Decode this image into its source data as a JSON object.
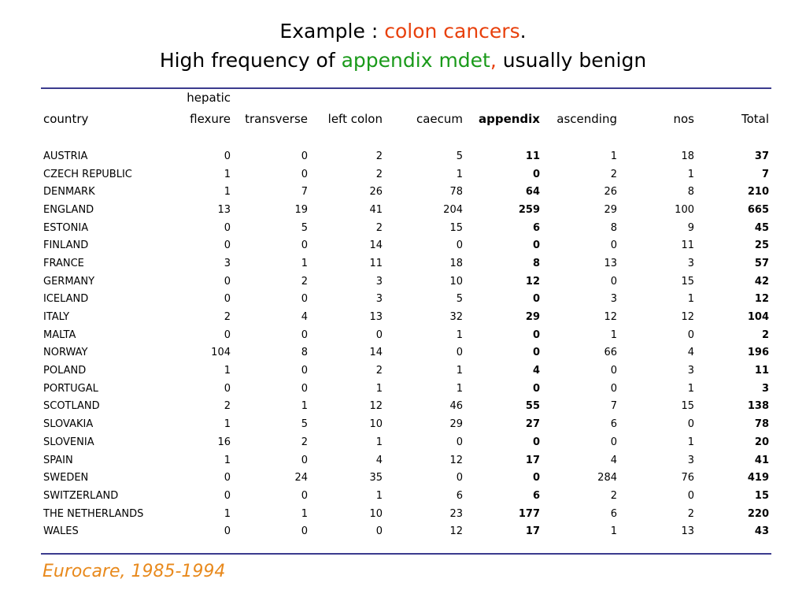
{
  "title": {
    "line1_prefix": "Example : ",
    "line1_highlight": "colon cancers",
    "line1_suffix": ".",
    "line2_prefix": "High frequency of ",
    "line2_highlight": "appendix mdet",
    "line2_comma": ",",
    "line2_suffix": " usually benign"
  },
  "colors": {
    "orange_red": "#e8400c",
    "green": "#1a9a1a",
    "rule": "#3b3b8e",
    "source": "#e8891c"
  },
  "table": {
    "headers": {
      "country": "country",
      "hepatic_flexure_line1": "hepatic",
      "hepatic_flexure_line2": "flexure",
      "transverse": "transverse",
      "left_colon": "left colon",
      "caecum": "caecum",
      "appendix": "appendix",
      "ascending": "ascending",
      "nos": "nos",
      "total": "Total"
    },
    "rows": [
      {
        "country": "AUSTRIA",
        "hepatic_flexure": "0",
        "transverse": "0",
        "left_colon": "2",
        "caecum": "5",
        "appendix": "11",
        "ascending": "1",
        "nos": "18",
        "total": "37"
      },
      {
        "country": "CZECH REPUBLIC",
        "hepatic_flexure": "1",
        "transverse": "0",
        "left_colon": "2",
        "caecum": "1",
        "appendix": "0",
        "ascending": "2",
        "nos": "1",
        "total": "7"
      },
      {
        "country": "DENMARK",
        "hepatic_flexure": "1",
        "transverse": "7",
        "left_colon": "26",
        "caecum": "78",
        "appendix": "64",
        "ascending": "26",
        "nos": "8",
        "total": "210"
      },
      {
        "country": "ENGLAND",
        "hepatic_flexure": "13",
        "transverse": "19",
        "left_colon": "41",
        "caecum": "204",
        "appendix": "259",
        "ascending": "29",
        "nos": "100",
        "total": "665"
      },
      {
        "country": "ESTONIA",
        "hepatic_flexure": "0",
        "transverse": "5",
        "left_colon": "2",
        "caecum": "15",
        "appendix": "6",
        "ascending": "8",
        "nos": "9",
        "total": "45"
      },
      {
        "country": "FINLAND",
        "hepatic_flexure": "0",
        "transverse": "0",
        "left_colon": "14",
        "caecum": "0",
        "appendix": "0",
        "ascending": "0",
        "nos": "11",
        "total": "25"
      },
      {
        "country": "FRANCE",
        "hepatic_flexure": "3",
        "transverse": "1",
        "left_colon": "11",
        "caecum": "18",
        "appendix": "8",
        "ascending": "13",
        "nos": "3",
        "total": "57"
      },
      {
        "country": "GERMANY",
        "hepatic_flexure": "0",
        "transverse": "2",
        "left_colon": "3",
        "caecum": "10",
        "appendix": "12",
        "ascending": "0",
        "nos": "15",
        "total": "42"
      },
      {
        "country": "ICELAND",
        "hepatic_flexure": "0",
        "transverse": "0",
        "left_colon": "3",
        "caecum": "5",
        "appendix": "0",
        "ascending": "3",
        "nos": "1",
        "total": "12"
      },
      {
        "country": "ITALY",
        "hepatic_flexure": "2",
        "transverse": "4",
        "left_colon": "13",
        "caecum": "32",
        "appendix": "29",
        "ascending": "12",
        "nos": "12",
        "total": "104"
      },
      {
        "country": "MALTA",
        "hepatic_flexure": "0",
        "transverse": "0",
        "left_colon": "0",
        "caecum": "1",
        "appendix": "0",
        "ascending": "1",
        "nos": "0",
        "total": "2"
      },
      {
        "country": "NORWAY",
        "hepatic_flexure": "104",
        "transverse": "8",
        "left_colon": "14",
        "caecum": "0",
        "appendix": "0",
        "ascending": "66",
        "nos": "4",
        "total": "196"
      },
      {
        "country": "POLAND",
        "hepatic_flexure": "1",
        "transverse": "0",
        "left_colon": "2",
        "caecum": "1",
        "appendix": "4",
        "ascending": "0",
        "nos": "3",
        "total": "11"
      },
      {
        "country": "PORTUGAL",
        "hepatic_flexure": "0",
        "transverse": "0",
        "left_colon": "1",
        "caecum": "1",
        "appendix": "0",
        "ascending": "0",
        "nos": "1",
        "total": "3"
      },
      {
        "country": "SCOTLAND",
        "hepatic_flexure": "2",
        "transverse": "1",
        "left_colon": "12",
        "caecum": "46",
        "appendix": "55",
        "ascending": "7",
        "nos": "15",
        "total": "138"
      },
      {
        "country": "SLOVAKIA",
        "hepatic_flexure": "1",
        "transverse": "5",
        "left_colon": "10",
        "caecum": "29",
        "appendix": "27",
        "ascending": "6",
        "nos": "0",
        "total": "78"
      },
      {
        "country": "SLOVENIA",
        "hepatic_flexure": "16",
        "transverse": "2",
        "left_colon": "1",
        "caecum": "0",
        "appendix": "0",
        "ascending": "0",
        "nos": "1",
        "total": "20"
      },
      {
        "country": "SPAIN",
        "hepatic_flexure": "1",
        "transverse": "0",
        "left_colon": "4",
        "caecum": "12",
        "appendix": "17",
        "ascending": "4",
        "nos": "3",
        "total": "41"
      },
      {
        "country": "SWEDEN",
        "hepatic_flexure": "0",
        "transverse": "24",
        "left_colon": "35",
        "caecum": "0",
        "appendix": "0",
        "ascending": "284",
        "nos": "76",
        "total": "419"
      },
      {
        "country": "SWITZERLAND",
        "hepatic_flexure": "0",
        "transverse": "0",
        "left_colon": "1",
        "caecum": "6",
        "appendix": "6",
        "ascending": "2",
        "nos": "0",
        "total": "15"
      },
      {
        "country": "THE NETHERLANDS",
        "hepatic_flexure": "1",
        "transverse": "1",
        "left_colon": "10",
        "caecum": "23",
        "appendix": "177",
        "ascending": "6",
        "nos": "2",
        "total": "220"
      },
      {
        "country": "WALES",
        "hepatic_flexure": "0",
        "transverse": "0",
        "left_colon": "0",
        "caecum": "12",
        "appendix": "17",
        "ascending": "1",
        "nos": "13",
        "total": "43"
      }
    ]
  },
  "source": "Eurocare, 1985-1994"
}
